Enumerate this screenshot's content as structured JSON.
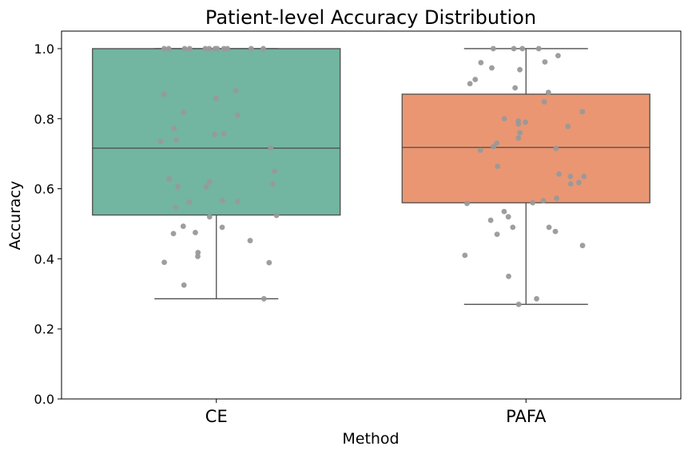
{
  "chart_data": {
    "type": "box",
    "title": "Patient-level Accuracy Distribution",
    "xlabel": "Method",
    "ylabel": "Accuracy",
    "ylim": [
      0,
      1.05
    ],
    "yticks": [
      "0.0",
      "0.2",
      "0.4",
      "0.6",
      "0.8",
      "1.0"
    ],
    "grid": false,
    "categories": [
      "CE",
      "PAFA"
    ],
    "boxes": [
      {
        "name": "CE",
        "color": "#72b5a0",
        "whisker_low": 0.286,
        "q1": 0.525,
        "median": 0.716,
        "q3": 1.0,
        "whisker_high": 1.0
      },
      {
        "name": "PAFA",
        "color": "#ea9673",
        "whisker_low": 0.27,
        "q1": 0.56,
        "median": 0.718,
        "q3": 0.87,
        "whisker_high": 1.0
      }
    ],
    "points": [
      {
        "category": "CE",
        "values": [
          1.0,
          1.0,
          1.0,
          1.0,
          1.0,
          1.0,
          1.0,
          1.0,
          1.0,
          1.0,
          1.0,
          1.0,
          0.88,
          0.87,
          0.858,
          0.818,
          0.81,
          0.772,
          0.757,
          0.755,
          0.74,
          0.735,
          0.717,
          0.65,
          0.628,
          0.62,
          0.614,
          0.606,
          0.605,
          0.566,
          0.564,
          0.562,
          0.547,
          0.524,
          0.52,
          0.493,
          0.49,
          0.475,
          0.472,
          0.452,
          0.418,
          0.407,
          0.39,
          0.389,
          0.325,
          0.286
        ]
      },
      {
        "category": "PAFA",
        "values": [
          1.0,
          1.0,
          1.0,
          1.0,
          0.98,
          0.962,
          0.96,
          0.945,
          0.94,
          0.912,
          0.9,
          0.888,
          0.875,
          0.848,
          0.82,
          0.8,
          0.793,
          0.79,
          0.785,
          0.778,
          0.76,
          0.745,
          0.73,
          0.72,
          0.715,
          0.71,
          0.664,
          0.642,
          0.635,
          0.635,
          0.618,
          0.614,
          0.573,
          0.566,
          0.56,
          0.558,
          0.535,
          0.52,
          0.51,
          0.49,
          0.49,
          0.478,
          0.47,
          0.438,
          0.41,
          0.35,
          0.286,
          0.27
        ]
      }
    ],
    "point_color": "#999999"
  }
}
